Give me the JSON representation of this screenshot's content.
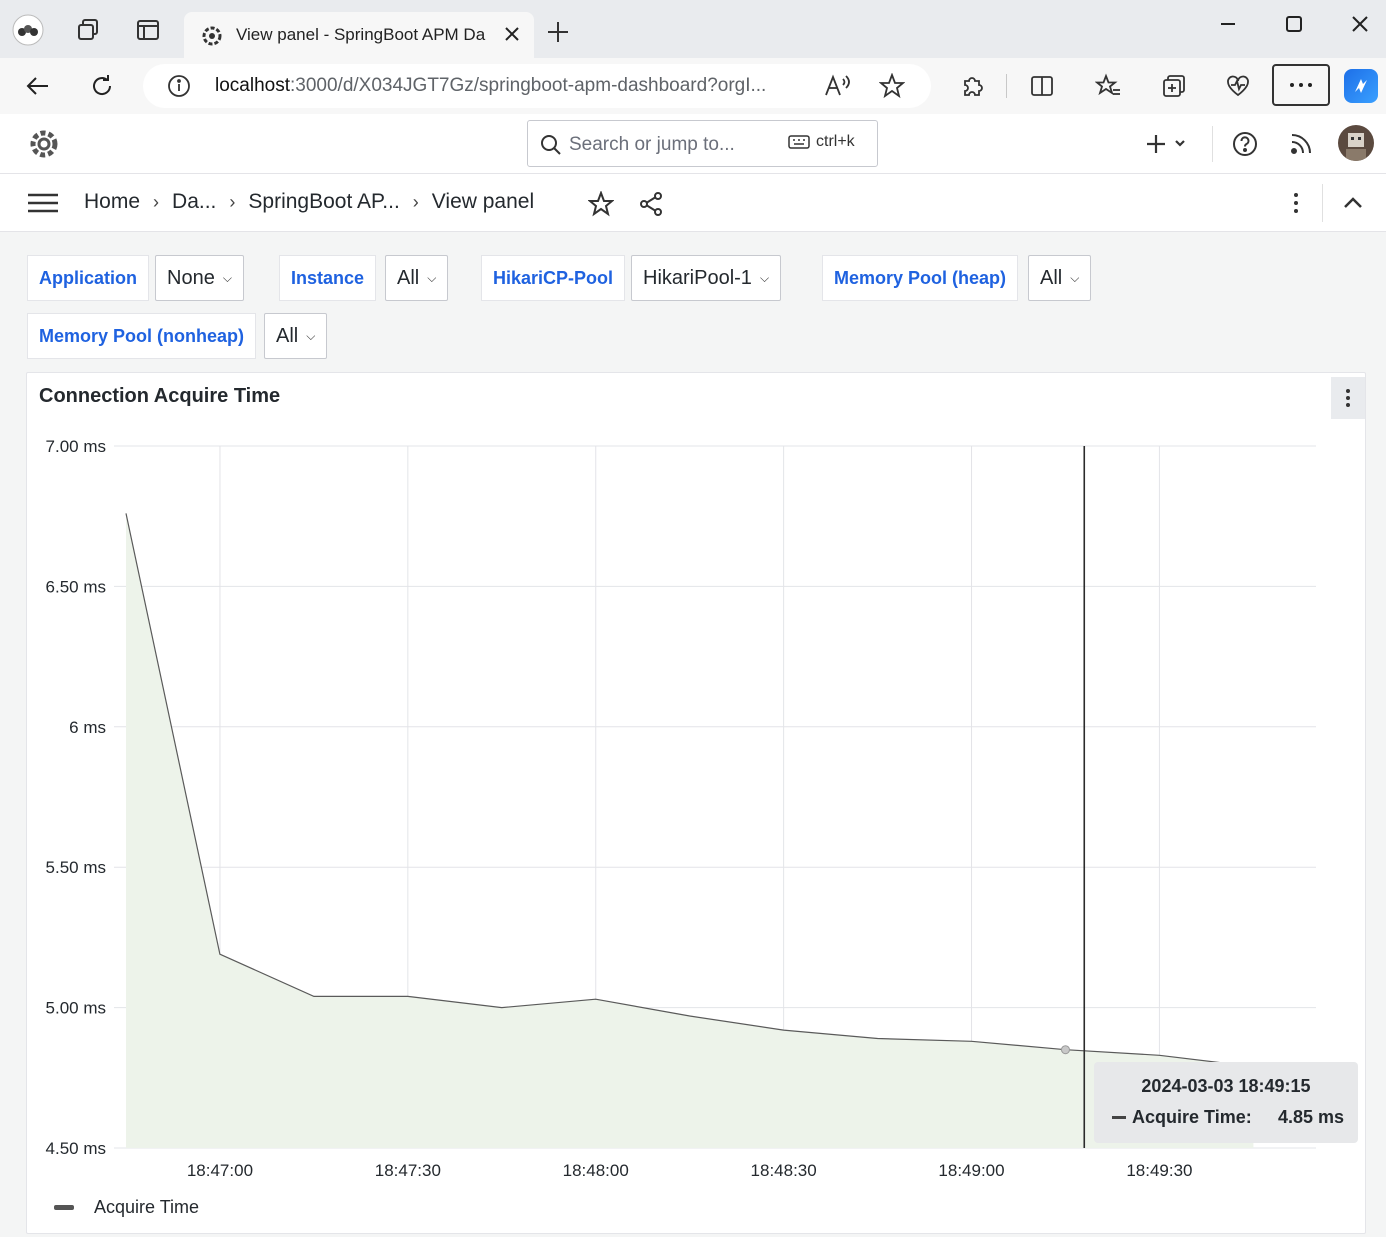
{
  "browser": {
    "tab_title": "View panel - SpringBoot APM Da",
    "url_host": "localhost",
    "url_rest": ":3000/d/X034JGT7Gz/springboot-apm-dashboard?orgI..."
  },
  "grafana": {
    "search_placeholder": "Search or jump to...",
    "search_shortcut": "ctrl+k",
    "breadcrumbs": [
      "Home",
      "Da...",
      "SpringBoot AP...",
      "View panel"
    ]
  },
  "variables": [
    {
      "label": "Application",
      "value": "None"
    },
    {
      "label": "Instance",
      "value": "All"
    },
    {
      "label": "HikariCP-Pool",
      "value": "HikariPool-1"
    },
    {
      "label": "Memory Pool (heap)",
      "value": "All"
    },
    {
      "label": "Memory Pool (nonheap)",
      "value": "All"
    }
  ],
  "panel": {
    "title": "Connection Acquire Time",
    "tooltip": {
      "time": "2024-03-03 18:49:15",
      "series": "Acquire Time:",
      "value": "4.85 ms"
    },
    "legend": "Acquire Time"
  },
  "colors": {
    "accent_link": "#1f62e0",
    "series_line": "#5a5a5a",
    "series_fill": "#edf3ea"
  },
  "chart_data": {
    "type": "area",
    "title": "Connection Acquire Time",
    "ylim": [
      4.5,
      7.0
    ],
    "yticks": [
      "7.00 ms",
      "6.50 ms",
      "6 ms",
      "5.50 ms",
      "5.00 ms",
      "4.50 ms"
    ],
    "ytick_values": [
      7.0,
      6.5,
      6.0,
      5.5,
      5.0,
      4.5
    ],
    "xticks": [
      "18:47:00",
      "18:47:30",
      "18:48:00",
      "18:48:30",
      "18:49:00",
      "18:49:30"
    ],
    "xtick_values": [
      "18:47:00",
      "18:47:30",
      "18:48:00",
      "18:48:30",
      "18:49:00",
      "18:49:30"
    ],
    "xlim": [
      "18:46:45",
      "18:49:55"
    ],
    "grid": true,
    "legend_position": "bottom-left",
    "series": [
      {
        "name": "Acquire Time",
        "x": [
          "18:46:45",
          "18:47:00",
          "18:47:15",
          "18:47:30",
          "18:47:45",
          "18:48:00",
          "18:48:15",
          "18:48:30",
          "18:48:45",
          "18:49:00",
          "18:49:15",
          "18:49:30",
          "18:49:45"
        ],
        "values": [
          6.76,
          5.19,
          5.04,
          5.04,
          5.0,
          5.03,
          4.97,
          4.92,
          4.89,
          4.88,
          4.85,
          4.83,
          4.79
        ]
      }
    ],
    "crosshair_x": "18:49:18",
    "hover_point": {
      "x": "18:49:15",
      "value": 4.85
    }
  }
}
